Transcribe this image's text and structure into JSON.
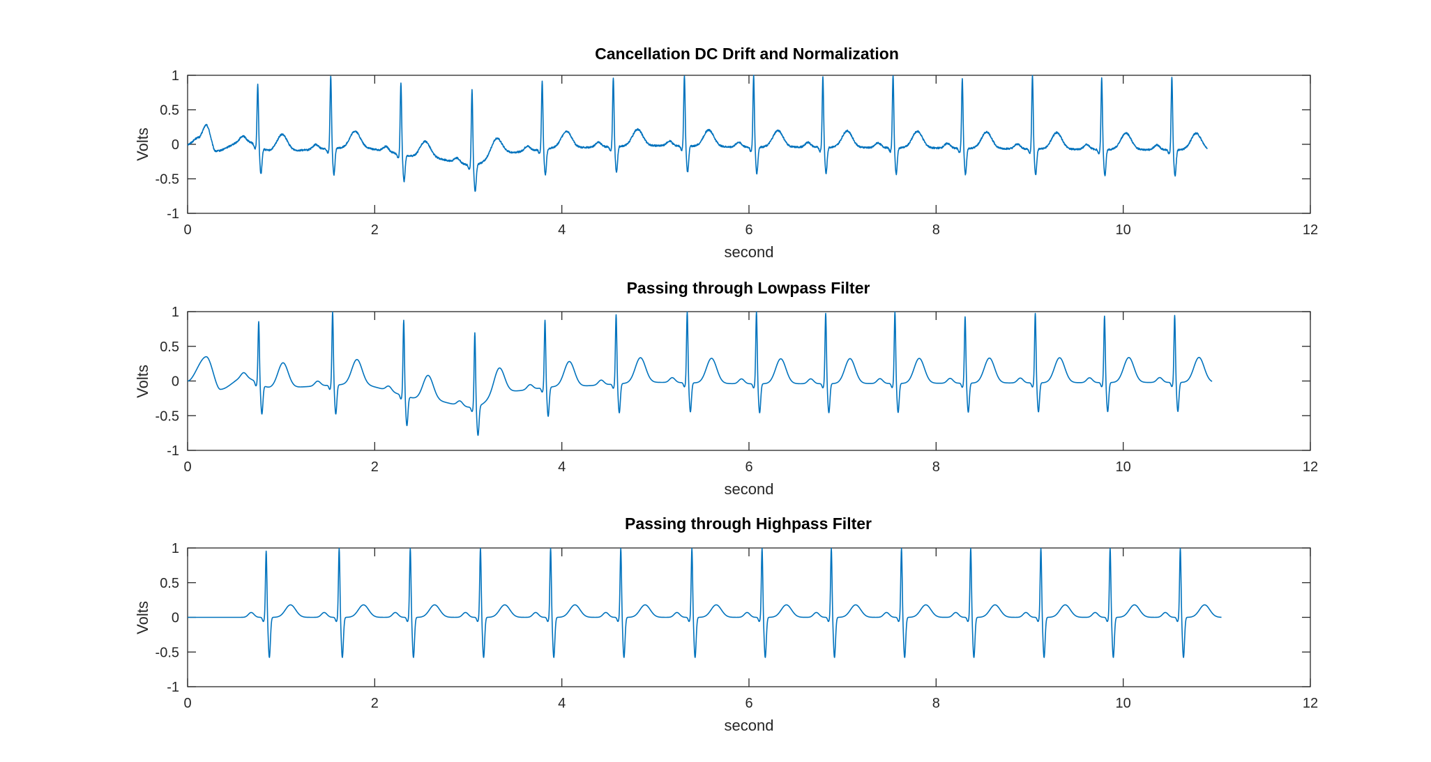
{
  "figure": {
    "background": "#ffffff",
    "trace_color": "#0072BD"
  },
  "chart_data": [
    {
      "type": "line",
      "title": "Cancellation DC Drift and Normalization",
      "xlabel": "second",
      "ylabel": "Volts",
      "xlim": [
        0,
        12
      ],
      "ylim": [
        -1,
        1
      ],
      "xticks": [
        "0",
        "2",
        "4",
        "6",
        "8",
        "10",
        "12"
      ],
      "yticks": [
        "1",
        "0.5",
        "0",
        "-0.5",
        "-1"
      ],
      "signal": {
        "start": 0.0,
        "end": 10.9,
        "beats": [
          [
            0.75,
            0.87
          ],
          [
            1.53,
            1.0
          ],
          [
            2.28,
            0.9
          ],
          [
            3.04,
            0.79
          ],
          [
            3.79,
            0.92
          ],
          [
            4.55,
            0.97
          ],
          [
            5.31,
            1.0
          ],
          [
            6.05,
            1.0
          ],
          [
            6.79,
            0.98
          ],
          [
            7.54,
            1.0
          ],
          [
            8.28,
            0.95
          ],
          [
            9.03,
            1.0
          ],
          [
            9.77,
            0.96
          ],
          [
            10.52,
            0.98
          ]
        ],
        "s_depth": -0.38,
        "t_amp": 0.24,
        "baseline": [
          [
            0.0,
            0.0
          ],
          [
            0.12,
            0.1
          ],
          [
            0.2,
            0.28
          ],
          [
            0.3,
            -0.1
          ],
          [
            0.6,
            0.05
          ],
          [
            0.9,
            -0.1
          ],
          [
            1.8,
            -0.05
          ],
          [
            2.6,
            -0.2
          ],
          [
            3.05,
            -0.3
          ],
          [
            3.4,
            -0.12
          ],
          [
            4.0,
            -0.05
          ],
          [
            5.0,
            -0.02
          ],
          [
            6.0,
            -0.04
          ],
          [
            10.9,
            -0.08
          ]
        ],
        "noise": 0.012
      }
    },
    {
      "type": "line",
      "title": "Passing through Lowpass Filter",
      "xlabel": "second",
      "ylabel": "Volts",
      "xlim": [
        0,
        12
      ],
      "ylim": [
        -1,
        1
      ],
      "xticks": [
        "0",
        "2",
        "4",
        "6",
        "8",
        "10",
        "12"
      ],
      "yticks": [
        "1",
        "0.5",
        "0",
        "-0.5",
        "-1"
      ],
      "signal": {
        "start": 0.0,
        "end": 10.95,
        "beats": [
          [
            0.76,
            0.86
          ],
          [
            1.55,
            1.0
          ],
          [
            2.31,
            0.88
          ],
          [
            3.07,
            0.7
          ],
          [
            3.82,
            0.88
          ],
          [
            4.58,
            0.96
          ],
          [
            5.34,
            1.0
          ],
          [
            6.08,
            1.0
          ],
          [
            6.82,
            0.98
          ],
          [
            7.56,
            1.0
          ],
          [
            8.31,
            0.93
          ],
          [
            9.06,
            0.98
          ],
          [
            9.8,
            0.94
          ],
          [
            10.55,
            0.95
          ]
        ],
        "s_depth": -0.42,
        "t_amp": 0.36,
        "baseline": [
          [
            0.0,
            0.0
          ],
          [
            0.2,
            0.35
          ],
          [
            0.35,
            -0.12
          ],
          [
            0.6,
            0.05
          ],
          [
            0.9,
            -0.1
          ],
          [
            1.8,
            -0.05
          ],
          [
            2.6,
            -0.28
          ],
          [
            3.05,
            -0.38
          ],
          [
            3.4,
            -0.15
          ],
          [
            4.0,
            -0.08
          ],
          [
            5.0,
            -0.02
          ],
          [
            6.0,
            -0.04
          ],
          [
            10.95,
            -0.02
          ]
        ],
        "noise": 0
      }
    },
    {
      "type": "line",
      "title": "Passing through Highpass Filter",
      "xlabel": "second",
      "ylabel": "Volts",
      "xlim": [
        0,
        12
      ],
      "ylim": [
        -1,
        1
      ],
      "xticks": [
        "0",
        "2",
        "4",
        "6",
        "8",
        "10",
        "12"
      ],
      "yticks": [
        "1",
        "0.5",
        "0",
        "-0.5",
        "-1"
      ],
      "signal": {
        "start": 0.0,
        "end": 11.05,
        "beats": [
          [
            0.84,
            0.96
          ],
          [
            1.62,
            1.0
          ],
          [
            2.38,
            1.0
          ],
          [
            3.13,
            1.0
          ],
          [
            3.88,
            1.0
          ],
          [
            4.63,
            1.0
          ],
          [
            5.39,
            1.0
          ],
          [
            6.14,
            1.0
          ],
          [
            6.88,
            1.0
          ],
          [
            7.63,
            1.0
          ],
          [
            8.37,
            1.0
          ],
          [
            9.12,
            1.0
          ],
          [
            9.86,
            1.0
          ],
          [
            10.61,
            1.0
          ]
        ],
        "s_depth": -0.58,
        "t_amp": 0.18,
        "baseline": [
          [
            0.0,
            0.0
          ],
          [
            11.05,
            0.0
          ]
        ],
        "noise": 0
      }
    }
  ]
}
